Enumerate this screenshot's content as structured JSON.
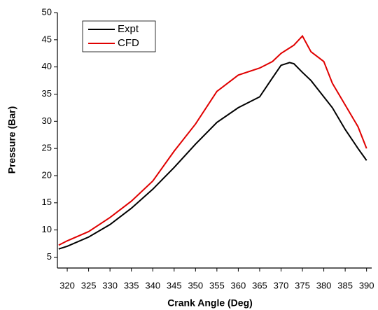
{
  "chart_data": {
    "type": "line",
    "x_label": "Crank Angle (Deg)",
    "y_label": "Pressure (Bar)",
    "x": [
      318,
      320,
      325,
      330,
      335,
      340,
      345,
      350,
      355,
      360,
      365,
      368,
      370,
      372,
      373,
      375,
      377,
      380,
      382,
      385,
      388,
      390
    ],
    "series": [
      {
        "name": "Expt",
        "color": "#000000",
        "values": [
          6.5,
          7.0,
          8.7,
          11.0,
          14.0,
          17.5,
          21.5,
          25.8,
          29.8,
          32.5,
          34.5,
          38.0,
          40.3,
          40.8,
          40.6,
          39.0,
          37.5,
          34.5,
          32.5,
          28.5,
          25.0,
          22.8
        ]
      },
      {
        "name": "CFD",
        "color": "#e00000",
        "values": [
          7.2,
          8.0,
          9.7,
          12.3,
          15.3,
          19.0,
          24.5,
          29.5,
          35.5,
          38.5,
          39.8,
          41.0,
          42.5,
          43.5,
          44.0,
          45.7,
          42.8,
          41.0,
          37.0,
          33.0,
          29.0,
          25.0
        ]
      }
    ],
    "xlim": [
      317.7,
      391.2
    ],
    "xticks": [
      320,
      325,
      330,
      335,
      340,
      345,
      350,
      355,
      360,
      365,
      370,
      375,
      380,
      385,
      390
    ],
    "ylim": [
      3,
      50
    ],
    "yticks": [
      5,
      10,
      15,
      20,
      25,
      30,
      35,
      40,
      45,
      50
    ],
    "legend": "top-left",
    "grid": false
  }
}
